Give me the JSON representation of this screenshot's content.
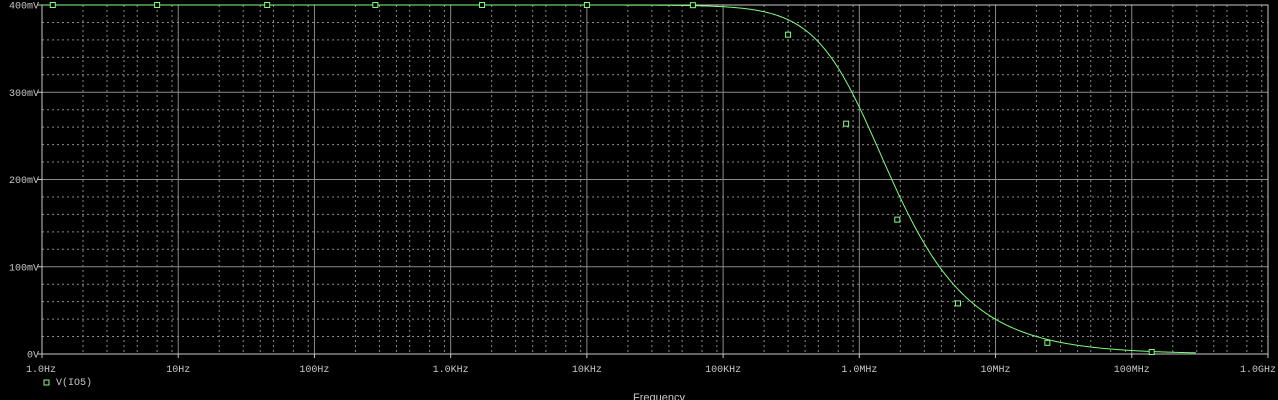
{
  "chart_data": {
    "type": "line",
    "xscale": "log",
    "xlim": [
      1,
      1000000000
    ],
    "ylim": [
      0,
      400
    ],
    "xlabel": "Frequency",
    "ylabel": "",
    "grid": true,
    "legend_position": "bottom-left",
    "x_tick_labels": [
      "1.0Hz",
      "10Hz",
      "100Hz",
      "1.0KHz",
      "10KHz",
      "100KHz",
      "1.0MHz",
      "10MHz",
      "100MHz",
      "1.0GHz"
    ],
    "y_ticks": [
      0,
      100,
      200,
      300,
      400
    ],
    "y_tick_labels": [
      "0V",
      "100mV",
      "200mV",
      "300mV",
      "400mV"
    ],
    "series": [
      {
        "name": "V(IO5)",
        "color": "#7fff7f",
        "cutoff_hz": 1000000,
        "dc_value": 400,
        "end_x": 300000000,
        "marker_x": [
          1.2,
          7,
          45,
          280,
          1700,
          10000,
          60000,
          300000,
          800000,
          1900000,
          5300000,
          24000000,
          140000000
        ],
        "marker_y": [
          400,
          400,
          400,
          400,
          400,
          400,
          399.8,
          366,
          264,
          154,
          58,
          12.8,
          2.3
        ]
      }
    ]
  }
}
